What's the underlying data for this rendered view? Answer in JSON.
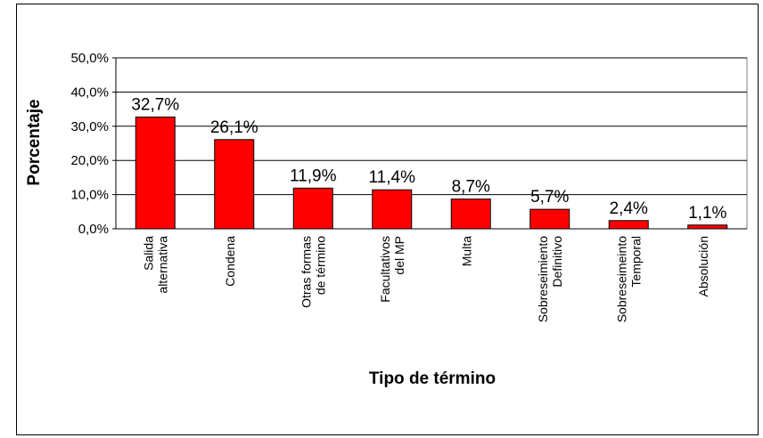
{
  "chart_data": {
    "type": "bar",
    "categories": [
      "Salida\nalternativa",
      "Condena",
      "Otras formas\nde término",
      "Facultativos\ndel MP",
      "Multa",
      "Sobreseimiento\nDefinitivo",
      "Sobreseimeinto\nTemporal",
      "Absolución"
    ],
    "values": [
      32.7,
      26.1,
      11.9,
      11.4,
      8.7,
      5.7,
      2.4,
      1.1
    ],
    "value_labels": [
      "32,7%",
      "26,1%",
      "11,9%",
      "11,4%",
      "8,7%",
      "5,7%",
      "2,4%",
      "1,1%"
    ],
    "color": "#ff0000",
    "xlabel": "Tipo de término",
    "ylabel": "Porcentaje",
    "ylim": [
      0,
      50
    ],
    "yticks": [
      {
        "value": 0,
        "label": "0,0%"
      },
      {
        "value": 10,
        "label": "10,0%"
      },
      {
        "value": 20,
        "label": "20,0%"
      },
      {
        "value": 30,
        "label": "30,0%"
      },
      {
        "value": 40,
        "label": "40,0%"
      },
      {
        "value": 50,
        "label": "50,0%"
      }
    ],
    "grid": true
  }
}
